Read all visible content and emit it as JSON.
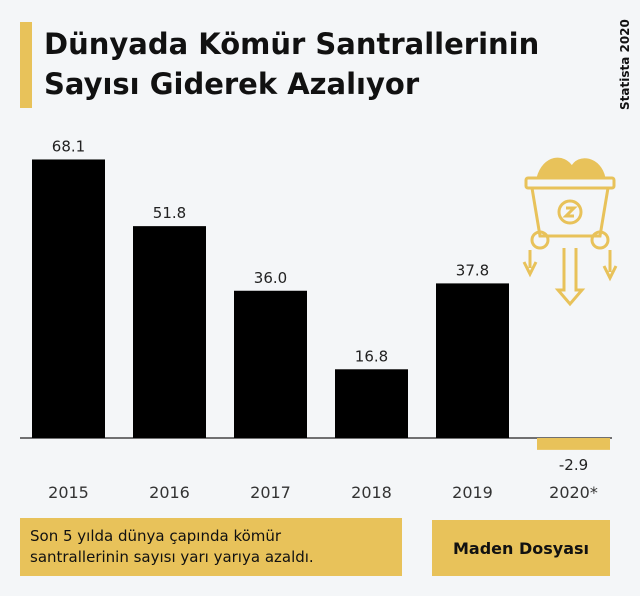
{
  "title": {
    "line1": "Dünyada Kömür Santrallerinin",
    "line2": "Sayısı Giderek Azalıyor"
  },
  "source": "Statista 2020",
  "chart_data": {
    "type": "bar",
    "categories": [
      "2015",
      "2016",
      "2017",
      "2018",
      "2019",
      "2020*"
    ],
    "values": [
      68.1,
      51.8,
      36.0,
      16.8,
      37.8,
      -2.9
    ],
    "value_labels": [
      "68.1",
      "51.8",
      "36.0",
      "16.8",
      "37.8",
      "-2.9"
    ],
    "colors": [
      "#000000",
      "#000000",
      "#000000",
      "#000000",
      "#000000",
      "#e8c25a"
    ],
    "ylim": [
      -2.9,
      68.1
    ],
    "grid": false,
    "legend": "none"
  },
  "note": {
    "line1": "Son 5 yılda dünya çapında kömür",
    "line2": "santrallerinin sayısı yarı yarıya azaldı."
  },
  "brand": "Maden Dosyası",
  "icons": {
    "mine_cart": "mine-cart-icon"
  },
  "colors": {
    "accent": "#e8c25a",
    "bar": "#000000",
    "background": "#f4f6f8"
  }
}
